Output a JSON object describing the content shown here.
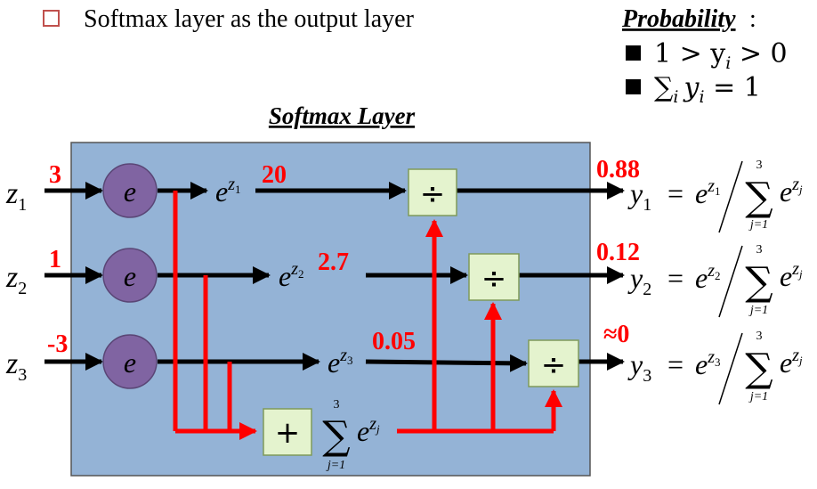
{
  "bullet_text": "Softmax layer as the output layer",
  "probability": {
    "heading": "Probability",
    "colon": ":",
    "cond1_lhs": "1 > y",
    "cond1_rhs": " > 0",
    "cond2_sum": "∑",
    "cond2_rhs": " = 1",
    "index": "i"
  },
  "layer_title": "Softmax Layer",
  "inputs": [
    {
      "var": "z",
      "sub": "1",
      "value": "3"
    },
    {
      "var": "z",
      "sub": "2",
      "value": "1"
    },
    {
      "var": "z",
      "sub": "3",
      "value": "-3"
    }
  ],
  "exp_node_label": "e",
  "exp_outputs": [
    {
      "base": "e",
      "sup": "z",
      "supsub": "1",
      "value": "20"
    },
    {
      "base": "e",
      "sup": "z",
      "supsub": "2",
      "value": "2.7"
    },
    {
      "base": "e",
      "sup": "z",
      "supsub": "3",
      "value": "0.05"
    }
  ],
  "divide_symbol": "÷",
  "sum_node": {
    "symbol": "+",
    "sigma": "∑",
    "upper": "3",
    "lower": "j=1",
    "base": "e",
    "sup": "z",
    "supsub": "j"
  },
  "outputs": [
    {
      "var": "y",
      "sub": "1",
      "value": "0.88",
      "num_supsub": "1"
    },
    {
      "var": "y",
      "sub": "2",
      "value": "0.12",
      "num_supsub": "2"
    },
    {
      "var": "y",
      "sub": "3",
      "value": "≈0",
      "num_supsub": "3"
    }
  ],
  "formula": {
    "equals": "=",
    "base": "e",
    "sup": "z",
    "sigma": "∑",
    "upper": "3",
    "lower": "j=1",
    "den_supsub": "j"
  },
  "colors": {
    "panel_fill": "#94B3D6",
    "panel_border": "#555555",
    "exp_node_fill": "#8064A2",
    "box_fill": "#E4F3CE",
    "red": "#FF0000",
    "checkbox": "#C0504D"
  }
}
